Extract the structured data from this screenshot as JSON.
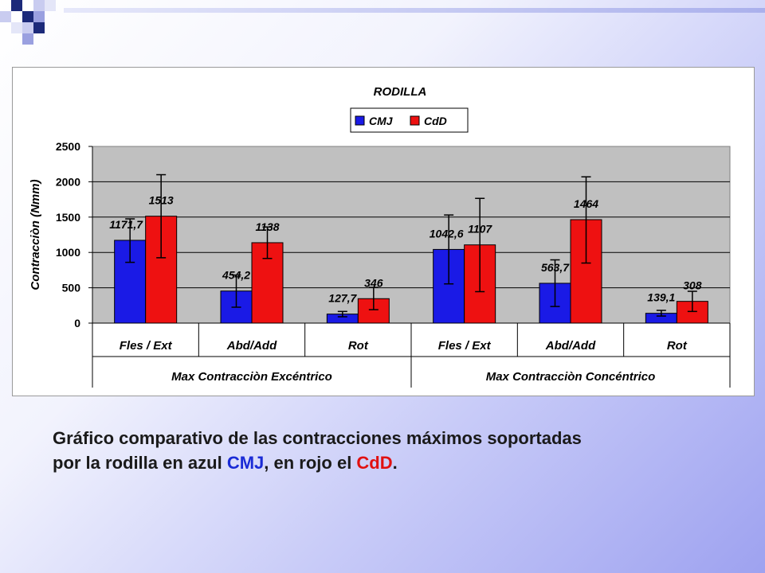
{
  "chart_data": {
    "type": "bar",
    "title": "RODILLA",
    "ylabel": "Contracciòn (Nmm)",
    "ylim": [
      0,
      2500
    ],
    "yticks": [
      0,
      500,
      1000,
      1500,
      2000,
      2500
    ],
    "grid": true,
    "legend_position": "top-center",
    "categories": [
      "Fles / Ext",
      "Abd/Add",
      "Rot",
      "Fles / Ext",
      "Abd/Add",
      "Rot"
    ],
    "groups": [
      {
        "label": "Max Contracciòn Excéntrico",
        "categories": [
          "Fles / Ext",
          "Abd/Add",
          "Rot"
        ]
      },
      {
        "label": "Max Contracciòn Concéntrico",
        "categories": [
          "Fles / Ext",
          "Abd/Add",
          "Rot"
        ]
      }
    ],
    "series": [
      {
        "name": "CMJ",
        "color": "#1a1ae6",
        "values": [
          1171.7,
          454.2,
          127.7,
          1042.6,
          563.7,
          139.1
        ],
        "labels": [
          "1171,7",
          "454,2",
          "127,7",
          "1042,6",
          "563,7",
          "139,1"
        ],
        "error_low": [
          860,
          225,
          90,
          555,
          235,
          100
        ],
        "error_high": [
          1475,
          680,
          165,
          1530,
          895,
          180
        ]
      },
      {
        "name": "CdD",
        "color": "#ee1111",
        "values": [
          1513,
          1138,
          346,
          1107,
          1464,
          308
        ],
        "labels": [
          "1513",
          "1138",
          "346",
          "1107",
          "1464",
          "308"
        ],
        "error_low": [
          925,
          915,
          190,
          445,
          850,
          165
        ],
        "error_high": [
          2100,
          1360,
          505,
          1765,
          2070,
          450
        ]
      }
    ],
    "plot_background": "#c0c0c0"
  },
  "caption": {
    "line1": "Gráfico comparativo de las contracciones máximos soportadas",
    "line2_prefix": "por la rodilla en azul ",
    "cmj": "CMJ",
    "line2_middle": ", en rojo el ",
    "cdd": "CdD",
    "line2_suffix": "."
  },
  "colors": {
    "accent_blue": "#1a2bd6",
    "accent_red": "#e11010",
    "deco_navy": "#1c2a7a"
  }
}
